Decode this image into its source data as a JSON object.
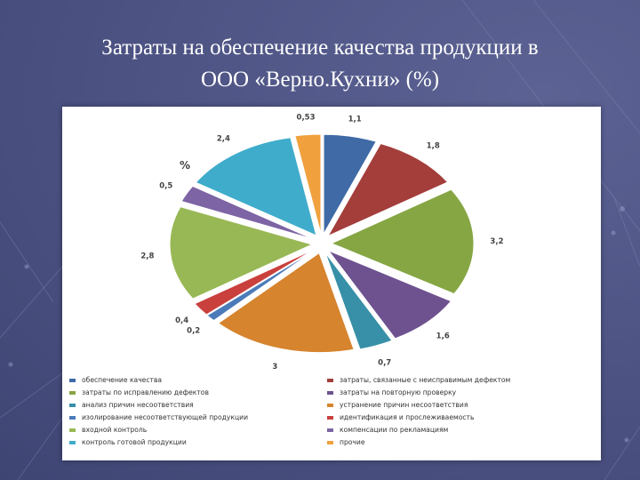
{
  "slide": {
    "title_line1": "Затраты на обеспечение качества продукции в",
    "title_line2": "ООО «Верно.Кухни» (%)"
  },
  "chart_data": {
    "type": "pie",
    "title": "%",
    "legend_position": "bottom",
    "categories": [
      "обеспечение качества",
      "затраты, связанные с неисправимым дефектом",
      "затраты по исправлению дефектов",
      "затраты на повторную проверку",
      "анализ причин несоответствия",
      "устранение причин несоответствия",
      "изолирование несоответствующей продукции",
      "идентификация и прослеживаемость",
      "входной контроль",
      "компенсации по рекламациям",
      "контроль готовой продукции",
      "прочие"
    ],
    "values": [
      1.1,
      1.8,
      3.2,
      1.6,
      0.7,
      3,
      0.2,
      0.4,
      2.8,
      0.5,
      2.4,
      0.53
    ],
    "value_labels": [
      "1,1",
      "1,8",
      "3,2",
      "1,6",
      "0,7",
      "3",
      "0,2",
      "0,4",
      "2,8",
      "0,5",
      "2,4",
      "0,53"
    ],
    "colors": [
      "#3f6aa6",
      "#a33e3b",
      "#86a644",
      "#6e5290",
      "#3790a8",
      "#d6842e",
      "#4b7bb8",
      "#c9403c",
      "#98b855",
      "#7d64a4",
      "#3faccb",
      "#f0a13e"
    ]
  }
}
